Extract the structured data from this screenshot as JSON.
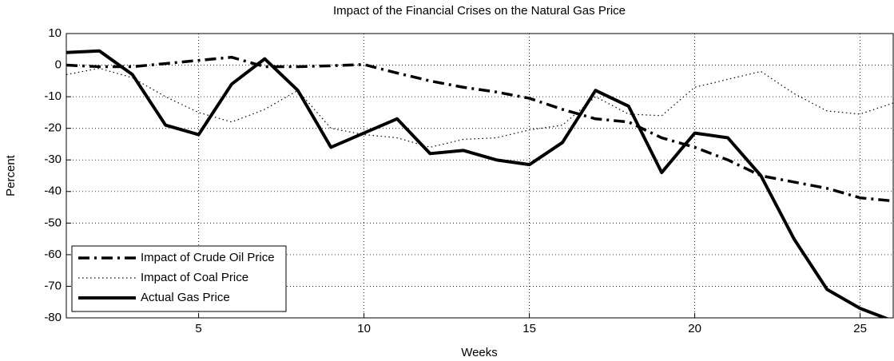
{
  "chart_data": {
    "type": "line",
    "title": "Impact of the Financial Crises on the Natural Gas Price",
    "x_label": "Weeks",
    "y_label": "Percent",
    "x": [
      1,
      2,
      3,
      4,
      5,
      6,
      7,
      8,
      9,
      10,
      11,
      12,
      13,
      14,
      15,
      16,
      17,
      18,
      19,
      20,
      21,
      22,
      23,
      24,
      25,
      26
    ],
    "series": [
      {
        "name": "Impact of Crude Oil Price",
        "color": "#000000",
        "linestyle": "dashdot",
        "values": [
          0,
          -0.5,
          -0.5,
          0.5,
          1.5,
          2.5,
          -0.5,
          -0.5,
          -0.2,
          0.2,
          -2.5,
          -5,
          -7,
          -8.5,
          -10.5,
          -14,
          -17,
          -18,
          -23,
          -26,
          -30,
          -35,
          -37,
          -39,
          -42,
          -43
        ]
      },
      {
        "name": "Impact of Coal Price",
        "color": "#000000",
        "linestyle": "dotted",
        "values": [
          -3,
          -1,
          -4,
          -10,
          -15,
          -18,
          -14,
          -8,
          -20,
          -22,
          -23,
          -26,
          -23.5,
          -23,
          -20.5,
          -19,
          -10,
          -15.5,
          -16,
          -7,
          -4.5,
          -2,
          -9,
          -14.5,
          -15.5,
          -12
        ]
      },
      {
        "name": "Actual Gas Price",
        "color": "#000000",
        "linestyle": "solid",
        "values": [
          4,
          4.5,
          -3,
          -19,
          -22,
          -6,
          2,
          -8,
          -26,
          -21.5,
          -17,
          -28,
          -27,
          -30,
          -31.5,
          -24.5,
          -8,
          -13,
          -34,
          -21.5,
          -23,
          -35,
          -55,
          -71,
          -77,
          -81
        ]
      }
    ],
    "xlim": [
      1,
      26
    ],
    "ylim": [
      -80,
      10
    ],
    "xticks": [
      5,
      10,
      15,
      20,
      25
    ],
    "yticks": [
      -80,
      -70,
      -60,
      -50,
      -40,
      -30,
      -20,
      -10,
      0,
      10
    ],
    "grid": true,
    "legend": "lower left"
  }
}
